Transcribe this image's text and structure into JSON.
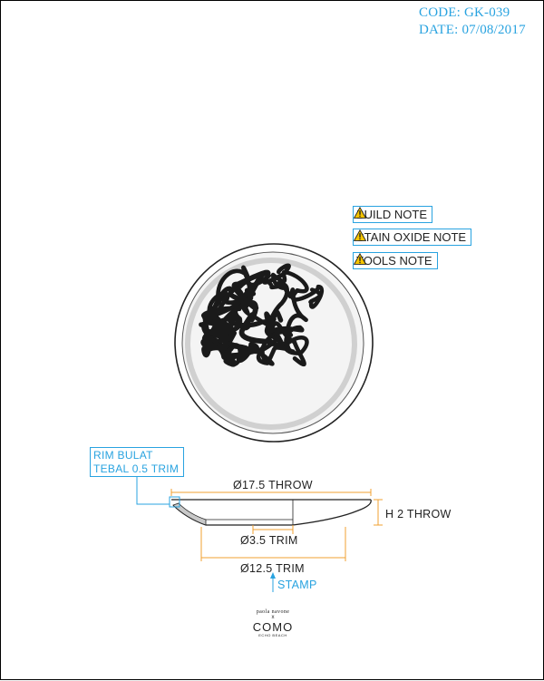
{
  "header": {
    "code": "CODE: GK-039",
    "date": "DATE: 07/08/2017"
  },
  "notes": [
    {
      "label": "BUILD NOTE"
    },
    {
      "label": "STAIN OXIDE NOTE"
    },
    {
      "label": "TOOLS NOTE"
    }
  ],
  "callout": {
    "line1": "RIM BULAT",
    "line2": "TEBAL 0.5 TRIM"
  },
  "dimensions": {
    "throw_diameter": "Ø17.5 THROW",
    "throw_height": "H 2 THROW",
    "trim_small": "Ø3.5 TRIM",
    "trim_large": "Ø12.5 TRIM",
    "stamp": "STAMP"
  },
  "brand": {
    "top": "paola navone",
    "x": "x",
    "main": "COMO",
    "sub": "ECHO BEACH"
  },
  "colors": {
    "accent": "#29a3e0",
    "dimension_orange": "#f0a030",
    "warning_yellow": "#f5c400",
    "line": "#222222"
  }
}
